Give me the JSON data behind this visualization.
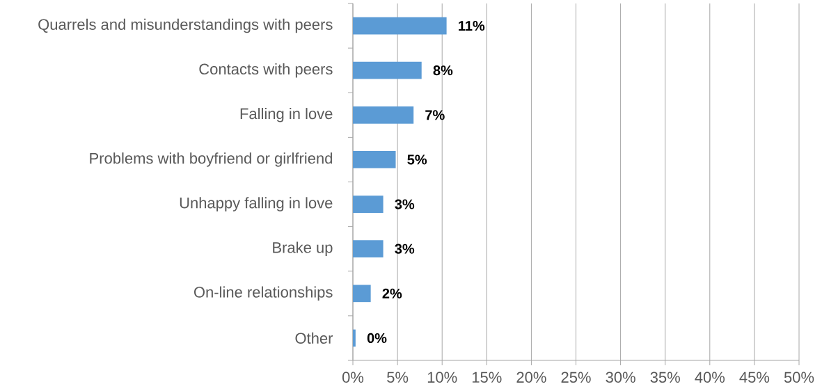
{
  "chart_data": {
    "type": "bar",
    "orientation": "horizontal",
    "categories": [
      "Quarrels and misunderstandings with peers",
      "Contacts with peers",
      "Falling in love",
      "Problems with boyfriend or girlfriend",
      "Unhappy falling in love",
      "Brake up",
      "On-line relationships",
      "Other"
    ],
    "values": [
      10.5,
      7.7,
      6.8,
      4.8,
      3.4,
      3.4,
      2.0,
      0.3
    ],
    "value_labels": [
      "11%",
      "8%",
      "7%",
      "5%",
      "3%",
      "3%",
      "2%",
      "0%"
    ],
    "color": "#5b9bd5",
    "xlim": [
      0,
      50
    ],
    "xticks": [
      {
        "value": 0,
        "label": "0%"
      },
      {
        "value": 5,
        "label": "5%"
      },
      {
        "value": 10,
        "label": "10%"
      },
      {
        "value": 15,
        "label": "15%"
      },
      {
        "value": 20,
        "label": "20%"
      },
      {
        "value": 25,
        "label": "25%"
      },
      {
        "value": 30,
        "label": "30%"
      },
      {
        "value": 35,
        "label": "35%"
      },
      {
        "value": 40,
        "label": "40%"
      },
      {
        "value": 45,
        "label": "45%"
      },
      {
        "value": 50,
        "label": "50%"
      }
    ],
    "grid": "x"
  }
}
